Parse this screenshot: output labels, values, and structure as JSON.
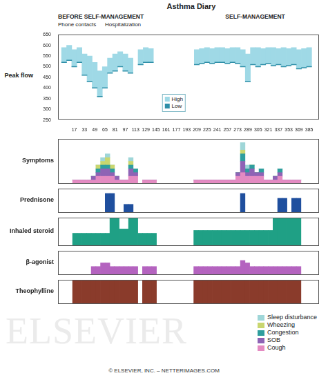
{
  "title": "Asthma Diary",
  "phase_labels": [
    "BEFORE SELF-MANAGEMENT",
    "SELF-MANAGEMENT"
  ],
  "event_labels": [
    "Phone contacts",
    "Hospitalization"
  ],
  "watermark": "ELSEVIER",
  "copyright": "© ELSEVIER, INC. – NETTERIMAGES.COM",
  "chart_data": [
    {
      "type": "range_bar",
      "title": "Peak flow",
      "x": [
        1,
        9,
        17,
        25,
        33,
        41,
        49,
        57,
        65,
        73,
        81,
        89,
        97,
        105,
        113,
        121,
        129,
        137,
        145,
        153,
        161,
        169,
        177,
        185,
        193,
        201,
        209,
        217,
        225,
        233,
        241,
        249,
        257,
        265,
        273,
        281,
        289,
        297,
        305,
        313,
        321,
        329,
        337,
        345,
        353,
        361,
        369,
        377,
        385
      ],
      "xlim": [
        0,
        392
      ],
      "xticks": [
        17,
        33,
        49,
        65,
        81,
        97,
        113,
        129,
        145,
        161,
        177,
        193,
        209,
        225,
        241,
        257,
        273,
        289,
        305,
        321,
        337,
        353,
        369,
        385
      ],
      "ylim": [
        250,
        650
      ],
      "yticks": [
        250,
        300,
        350,
        400,
        450,
        500,
        550,
        600,
        650
      ],
      "grid": false,
      "legend": "center",
      "series": [
        {
          "name": "High",
          "color": "#9fd9e6",
          "values": [
            590,
            600,
            580,
            590,
            560,
            550,
            520,
            480,
            500,
            540,
            560,
            570,
            560,
            540,
            null,
            580,
            590,
            585,
            null,
            null,
            null,
            null,
            null,
            null,
            null,
            null,
            580,
            585,
            590,
            585,
            590,
            590,
            585,
            590,
            590,
            580,
            560,
            590,
            590,
            585,
            590,
            590,
            585,
            590,
            585,
            590,
            580,
            585,
            590
          ]
        },
        {
          "name": "Low",
          "color": "#2f8fa8",
          "values": [
            520,
            530,
            500,
            520,
            460,
            430,
            400,
            360,
            400,
            470,
            480,
            500,
            480,
            470,
            null,
            510,
            520,
            520,
            null,
            null,
            null,
            null,
            null,
            null,
            null,
            null,
            510,
            515,
            520,
            515,
            520,
            520,
            515,
            520,
            515,
            500,
            430,
            510,
            500,
            510,
            515,
            505,
            510,
            500,
            505,
            510,
            490,
            495,
            500
          ]
        }
      ]
    },
    {
      "type": "bar",
      "title": "Symptoms",
      "stacked": true,
      "tick_labels": false,
      "grid": false,
      "legend": "lower right",
      "x": [
        1,
        9,
        17,
        25,
        33,
        41,
        49,
        57,
        65,
        73,
        81,
        89,
        97,
        105,
        113,
        121,
        129,
        137,
        145,
        153,
        161,
        169,
        177,
        185,
        193,
        201,
        209,
        217,
        225,
        233,
        241,
        249,
        257,
        265,
        273,
        281,
        289,
        297,
        305,
        313,
        321,
        329,
        337,
        345,
        353,
        361,
        369,
        377,
        385
      ],
      "xlim": [
        0,
        392
      ],
      "ylim": [
        0,
        12
      ],
      "series": [
        {
          "name": "Cough",
          "color": "#e48bc2",
          "values": [
            1,
            1,
            1,
            1,
            1,
            2,
            2,
            2,
            2,
            1,
            1,
            1,
            2,
            2,
            0,
            1,
            1,
            1,
            null,
            null,
            null,
            null,
            null,
            null,
            null,
            null,
            1,
            1,
            1,
            1,
            1,
            1,
            1,
            1,
            1,
            2,
            3,
            2,
            2,
            2,
            2,
            1,
            1,
            1,
            2,
            1,
            1,
            1,
            1
          ]
        },
        {
          "name": "SOB",
          "color": "#8e63b5",
          "values": [
            0,
            0,
            0,
            0,
            1,
            1,
            2,
            2,
            1,
            1,
            0,
            0,
            2,
            1,
            0,
            0,
            0,
            0,
            null,
            null,
            null,
            null,
            null,
            null,
            null,
            null,
            0,
            0,
            0,
            0,
            0,
            0,
            0,
            0,
            0,
            1,
            3,
            1,
            2,
            1,
            1,
            0,
            0,
            1,
            1,
            0,
            0,
            0,
            0
          ]
        },
        {
          "name": "Congestion",
          "color": "#2f9e9e",
          "values": [
            0,
            0,
            0,
            0,
            0,
            1,
            1,
            1,
            1,
            0,
            0,
            0,
            1,
            1,
            0,
            0,
            0,
            0,
            null,
            null,
            null,
            null,
            null,
            null,
            null,
            null,
            0,
            0,
            0,
            0,
            0,
            0,
            0,
            0,
            0,
            0,
            2,
            1,
            1,
            0,
            1,
            0,
            0,
            0,
            1,
            0,
            0,
            0,
            0
          ]
        },
        {
          "name": "Wheezing",
          "color": "#c9d66f",
          "values": [
            0,
            0,
            0,
            0,
            0,
            1,
            1,
            2,
            1,
            0,
            0,
            0,
            1,
            0,
            0,
            0,
            0,
            0,
            null,
            null,
            null,
            null,
            null,
            null,
            null,
            null,
            0,
            0,
            0,
            0,
            0,
            0,
            0,
            0,
            0,
            0,
            1,
            0,
            0,
            0,
            0,
            0,
            0,
            0,
            0,
            0,
            0,
            0,
            0
          ]
        },
        {
          "name": "Sleep disturbance",
          "color": "#9fd6d8",
          "values": [
            0,
            0,
            0,
            0,
            0,
            0,
            1,
            1,
            0,
            0,
            0,
            0,
            1,
            0,
            0,
            0,
            0,
            0,
            null,
            null,
            null,
            null,
            null,
            null,
            null,
            null,
            0,
            0,
            0,
            0,
            0,
            0,
            0,
            0,
            0,
            0,
            2,
            1,
            0,
            0,
            0,
            0,
            0,
            0,
            0,
            0,
            0,
            0,
            0
          ]
        }
      ]
    },
    {
      "type": "bar",
      "title": "Prednisone",
      "tick_labels": false,
      "grid": false,
      "color": "#1f4f9e",
      "x": [
        1,
        9,
        17,
        25,
        33,
        41,
        49,
        57,
        65,
        73,
        81,
        89,
        97,
        105,
        113,
        121,
        129,
        137,
        145,
        153,
        161,
        169,
        177,
        185,
        193,
        201,
        209,
        217,
        225,
        233,
        241,
        249,
        257,
        265,
        273,
        281,
        289,
        297,
        305,
        313,
        321,
        329,
        337,
        345,
        353,
        361,
        369,
        377,
        385
      ],
      "xlim": [
        0,
        392
      ],
      "ylim": [
        0,
        1
      ],
      "values": [
        0,
        0,
        0,
        0,
        0,
        0,
        0,
        0.8,
        0.8,
        0,
        0,
        0.35,
        0.35,
        0,
        0,
        0,
        0,
        0,
        null,
        null,
        null,
        null,
        null,
        null,
        null,
        null,
        0,
        0,
        0,
        0,
        0,
        0,
        0,
        0,
        0,
        0,
        0.8,
        0,
        0,
        0,
        0,
        0,
        0,
        0,
        0.6,
        0.6,
        0,
        0.6,
        0.6
      ]
    },
    {
      "type": "bar",
      "title": "Inhaled steroid",
      "tick_labels": false,
      "grid": false,
      "color": "#1fa085",
      "x": [
        1,
        9,
        17,
        25,
        33,
        41,
        49,
        57,
        65,
        73,
        81,
        89,
        97,
        105,
        113,
        121,
        129,
        137,
        145,
        153,
        161,
        169,
        177,
        185,
        193,
        201,
        209,
        217,
        225,
        233,
        241,
        249,
        257,
        265,
        273,
        281,
        289,
        297,
        305,
        313,
        321,
        329,
        337,
        345,
        353,
        361,
        369,
        377,
        385
      ],
      "xlim": [
        0,
        392
      ],
      "ylim": [
        0,
        1
      ],
      "values": [
        0.45,
        0.45,
        0.45,
        0.45,
        0.45,
        0.45,
        0.45,
        0.45,
        1,
        1,
        0.6,
        0.6,
        1,
        1,
        0.45,
        0.45,
        0.45,
        0.45,
        null,
        null,
        null,
        null,
        null,
        null,
        null,
        null,
        0.55,
        0.55,
        0.55,
        0.55,
        0.55,
        0.55,
        0.55,
        0.55,
        0.55,
        0.55,
        0.55,
        0.55,
        0.55,
        0.55,
        0.55,
        0.55,
        0.55,
        1,
        1,
        1,
        1,
        1,
        1
      ]
    },
    {
      "type": "bar",
      "title": "β-agonist",
      "tick_labels": false,
      "grid": false,
      "color": "#b463bf",
      "x": [
        1,
        9,
        17,
        25,
        33,
        41,
        49,
        57,
        65,
        73,
        81,
        89,
        97,
        105,
        113,
        121,
        129,
        137,
        145,
        153,
        161,
        169,
        177,
        185,
        193,
        201,
        209,
        217,
        225,
        233,
        241,
        249,
        257,
        265,
        273,
        281,
        289,
        297,
        305,
        313,
        321,
        329,
        337,
        345,
        353,
        361,
        369,
        377,
        385
      ],
      "xlim": [
        0,
        392
      ],
      "ylim": [
        0,
        1
      ],
      "values": [
        0,
        0,
        0,
        0,
        0.35,
        0.35,
        0.5,
        0.5,
        0.35,
        0.35,
        0.35,
        0.35,
        0.35,
        0.35,
        0,
        0.35,
        0.35,
        0.35,
        null,
        null,
        null,
        null,
        null,
        null,
        null,
        null,
        0.35,
        0.35,
        0.35,
        0.35,
        0.35,
        0.35,
        0.35,
        0.35,
        0.35,
        0.35,
        0.6,
        0.5,
        0.35,
        0.35,
        0.35,
        0.35,
        0.35,
        0.35,
        0.35,
        0.35,
        0.35,
        0.35,
        0.35
      ]
    },
    {
      "type": "bar",
      "title": "Theophylline",
      "tick_labels": false,
      "grid": false,
      "color": "#8a3b2b",
      "x": [
        1,
        9,
        17,
        25,
        33,
        41,
        49,
        57,
        65,
        73,
        81,
        89,
        97,
        105,
        113,
        121,
        129,
        137,
        145,
        153,
        161,
        169,
        177,
        185,
        193,
        201,
        209,
        217,
        225,
        233,
        241,
        249,
        257,
        265,
        273,
        281,
        289,
        297,
        305,
        313,
        321,
        329,
        337,
        345,
        353,
        361,
        369,
        377,
        385
      ],
      "xlim": [
        0,
        392
      ],
      "ylim": [
        0,
        1
      ],
      "values": [
        1,
        1,
        1,
        1,
        1,
        1,
        1,
        1,
        1,
        1,
        1,
        1,
        1,
        1,
        0,
        1,
        1,
        1,
        null,
        null,
        null,
        null,
        null,
        null,
        null,
        null,
        1,
        1,
        1,
        1,
        1,
        1,
        1,
        1,
        1,
        1,
        1,
        1,
        1,
        1,
        1,
        1,
        1,
        1,
        1,
        1,
        1,
        1,
        1
      ]
    }
  ]
}
